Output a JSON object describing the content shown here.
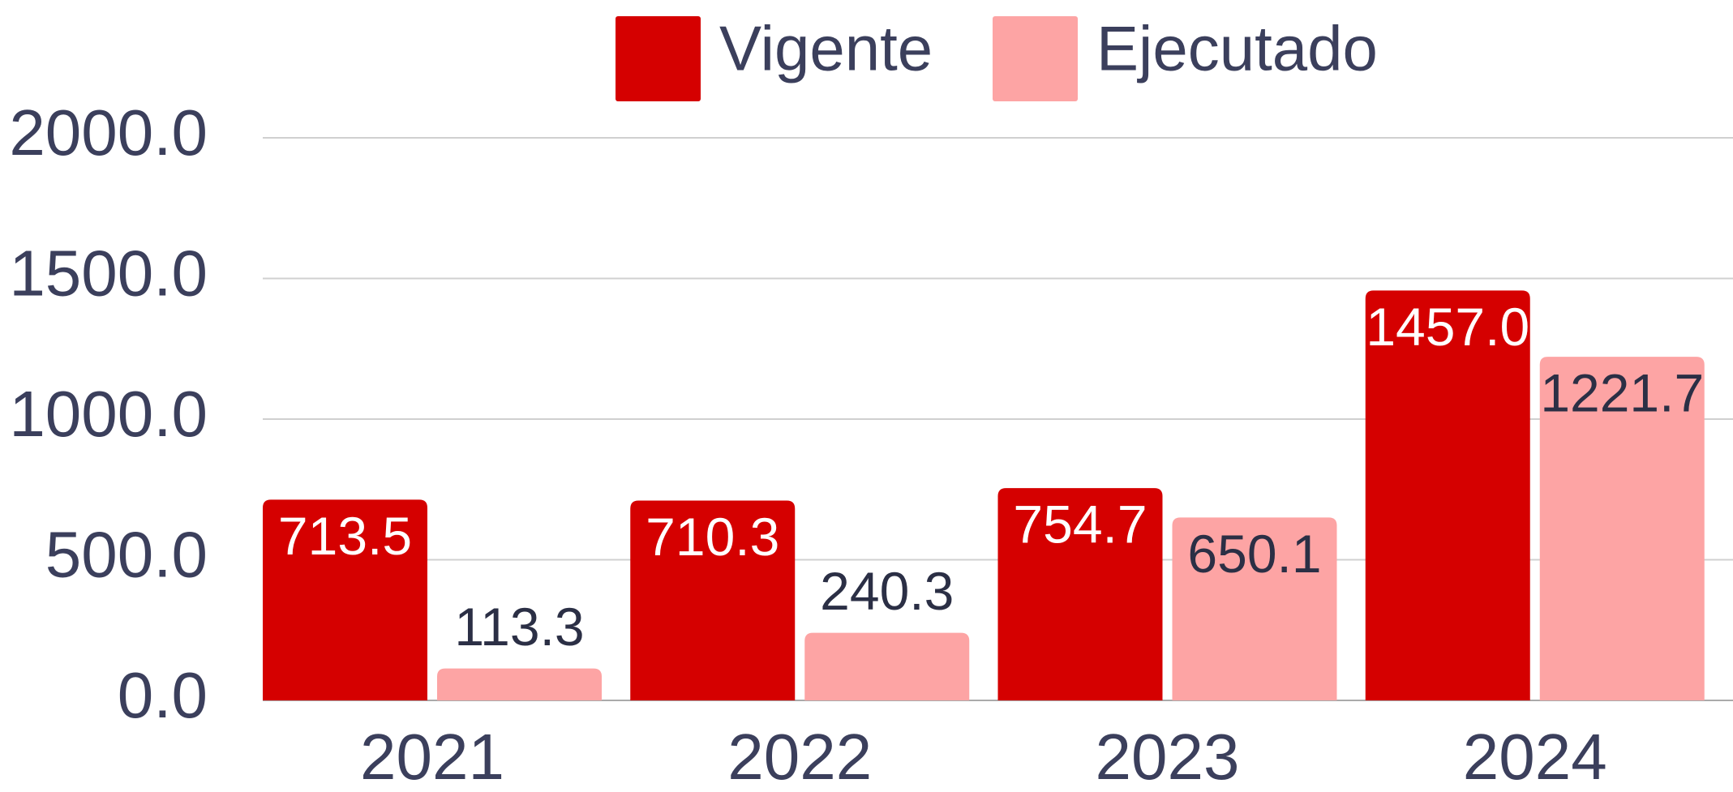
{
  "chart_data": {
    "type": "bar",
    "categories": [
      "2021",
      "2022",
      "2023",
      "2024"
    ],
    "series": [
      {
        "name": "Vigente",
        "color": "#d50000",
        "values": [
          713.5,
          710.3,
          754.7,
          1457.0
        ],
        "value_labels": [
          "713.5",
          "710.3",
          "754.7",
          "1457.0"
        ]
      },
      {
        "name": "Ejecutado",
        "color": "#fda4a4",
        "values": [
          113.3,
          240.3,
          650.1,
          1221.7
        ],
        "value_labels": [
          "113.3",
          "240.3",
          "650.1",
          "1221.7"
        ]
      }
    ],
    "ylim": [
      0,
      2000
    ],
    "yticks": [
      {
        "value": 0,
        "label": "0.0"
      },
      {
        "value": 500,
        "label": "500.0"
      },
      {
        "value": 1000,
        "label": "1000.0"
      },
      {
        "value": 1500,
        "label": "1500.0"
      },
      {
        "value": 2000,
        "label": "2000.0"
      }
    ],
    "grid": true,
    "legend": "top"
  }
}
